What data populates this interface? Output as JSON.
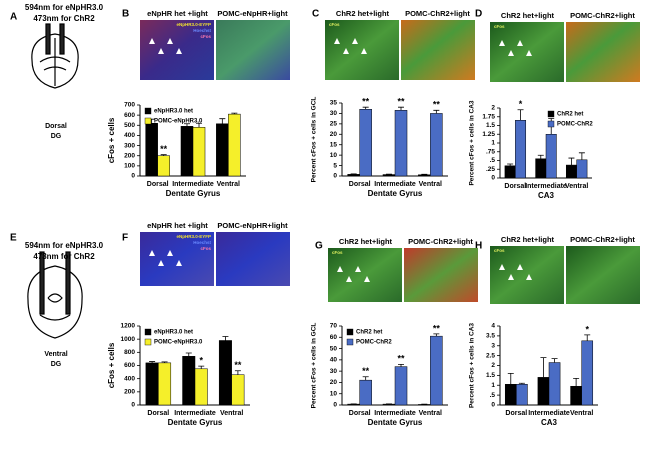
{
  "panel_labels": [
    "A",
    "B",
    "C",
    "D",
    "E",
    "F",
    "G",
    "H"
  ],
  "diagrams": [
    {
      "title_lines": [
        "594nm for eNpHR3.0",
        "473nm for ChR2"
      ],
      "labels": [
        "Dorsal",
        "DG"
      ]
    },
    {
      "title_lines": [
        "594nm for eNpHR3.0",
        "473nm for ChR2"
      ],
      "labels": [
        "Ventral",
        "DG"
      ]
    }
  ],
  "micrographs": [
    {
      "left": "eNpHR het +light",
      "right": "POMC-eNpHR+light",
      "stains": [
        "eNpHR3.0-EYFP",
        "Hoechst",
        "cFos"
      ]
    },
    {
      "left": "ChR2 het+light",
      "right": "POMC-ChR2+light",
      "stains": [
        "cFos"
      ]
    },
    {
      "left": "ChR2 het+light",
      "right": "POMC-ChR2+light",
      "stains": [
        "cFos"
      ]
    },
    {
      "left": "eNpHR het +light",
      "right": "POMC-eNpHR+light",
      "stains": [
        "eNpHR3.0-EYFP",
        "Hoechst",
        "cFos"
      ]
    },
    {
      "left": "ChR2 het+light",
      "right": "POMC-ChR2+light",
      "stains": [
        "cFos"
      ]
    },
    {
      "left": "ChR2 het+light",
      "right": "POMC-ChR2+light",
      "stains": [
        "cFos"
      ]
    }
  ],
  "chart_data": [
    {
      "type": "bar",
      "y_label": "cFos + cells",
      "x_label": "Dentate Gyrus",
      "categories": [
        "Dorsal",
        "Intermediate",
        "Ventral"
      ],
      "series": [
        {
          "name": "eNpHR3.0 het",
          "color": "#000000",
          "values": [
            520,
            490,
            515
          ],
          "errors": [
            40,
            25,
            50
          ],
          "significance": [
            null,
            null,
            null
          ]
        },
        {
          "name": "POMC-eNpHR3.0",
          "color": "#f5ef2a",
          "values": [
            200,
            480,
            610
          ],
          "errors": [
            10,
            40,
            10
          ],
          "significance": [
            "**",
            null,
            null
          ]
        }
      ],
      "ylim": [
        0,
        700
      ],
      "yticks": [
        0,
        100,
        200,
        300,
        400,
        500,
        600,
        700
      ],
      "legend": "upper left"
    },
    {
      "type": "bar",
      "y_label": "Percent cFos + cells in GCL",
      "x_label": "Dentate Gyrus",
      "categories": [
        "Dorsal",
        "Intermediate",
        "Ventral"
      ],
      "series": [
        {
          "color": "#000000",
          "values": [
            0.8,
            0.7,
            0.6
          ],
          "errors": [
            0.2,
            0.2,
            0.2
          ],
          "significance": [
            null,
            null,
            null
          ]
        },
        {
          "color": "#4a6cc4",
          "values": [
            32,
            31.5,
            30
          ],
          "errors": [
            1,
            1.5,
            1.5
          ],
          "significance": [
            "**",
            "**",
            "**"
          ]
        }
      ],
      "ylim": [
        0,
        35
      ],
      "yticks": [
        0,
        5,
        10,
        15,
        20,
        25,
        30,
        35
      ]
    },
    {
      "type": "bar",
      "y_label": "Percent cFos + cells in CA3",
      "x_label": "CA3",
      "categories": [
        "Dorsal",
        "Intermediate",
        "Ventral"
      ],
      "series": [
        {
          "name": "ChR2 het",
          "color": "#000000",
          "values": [
            0.35,
            0.55,
            0.37
          ],
          "errors": [
            0.05,
            0.1,
            0.2
          ],
          "significance": [
            null,
            null,
            null
          ]
        },
        {
          "name": "POMC-ChR2",
          "color": "#4a6cc4",
          "values": [
            1.65,
            1.25,
            0.52
          ],
          "errors": [
            0.3,
            0.45,
            0.2
          ],
          "significance": [
            "*",
            null,
            null
          ]
        }
      ],
      "ylim": [
        0,
        2
      ],
      "yticks": [
        0,
        {
          "value": 0.25,
          "label": ".25"
        },
        {
          "value": 0.5,
          "label": ".5"
        },
        {
          "value": 0.75,
          "label": ".75"
        },
        1,
        1.25,
        1.5,
        1.75,
        2
      ],
      "legend": "upper right"
    },
    {
      "type": "bar",
      "y_label": "cFos + cells",
      "x_label": "Dentate Gyrus",
      "categories": [
        "Dorsal",
        "Intermediate",
        "Ventral"
      ],
      "series": [
        {
          "name": "eNpHR3.0 het",
          "color": "#000000",
          "values": [
            640,
            740,
            980
          ],
          "errors": [
            20,
            50,
            60
          ],
          "significance": [
            null,
            null,
            null
          ]
        },
        {
          "name": "POMC-eNpHR3.0",
          "color": "#f5ef2a",
          "values": [
            640,
            550,
            460
          ],
          "errors": [
            15,
            40,
            60
          ],
          "significance": [
            null,
            "*",
            "**"
          ]
        }
      ],
      "ylim": [
        0,
        1200
      ],
      "yticks": [
        0,
        200,
        400,
        600,
        800,
        1000,
        1200
      ],
      "legend": "upper left"
    },
    {
      "type": "bar",
      "y_label": "Percent cFos + cells in GCL",
      "x_label": "Dentate Gyrus",
      "categories": [
        "Dorsal",
        "Intermediate",
        "Ventral"
      ],
      "series": [
        {
          "name": "ChR2 het",
          "color": "#000000",
          "values": [
            0.8,
            0.8,
            0.5
          ],
          "errors": [
            0.2,
            0.2,
            0.2
          ],
          "significance": [
            null,
            null,
            null
          ]
        },
        {
          "name": "POMC-ChR2",
          "color": "#4a6cc4",
          "values": [
            22,
            34,
            61
          ],
          "errors": [
            3,
            2,
            2
          ],
          "significance": [
            "**",
            "**",
            "**"
          ]
        }
      ],
      "ylim": [
        0,
        70
      ],
      "yticks": [
        0,
        10,
        20,
        30,
        40,
        50,
        60,
        70
      ],
      "legend": "upper left"
    },
    {
      "type": "bar",
      "y_label": "Percent cFos + cells in CA3",
      "x_label": "CA3",
      "categories": [
        "Dorsal",
        "Intermediate",
        "Ventral"
      ],
      "series": [
        {
          "color": "#000000",
          "values": [
            1.05,
            1.4,
            0.95
          ],
          "errors": [
            0.55,
            1.0,
            0.4
          ],
          "significance": [
            null,
            null,
            null
          ]
        },
        {
          "color": "#4a6cc4",
          "values": [
            1.05,
            2.15,
            3.25
          ],
          "errors": [
            0.05,
            0.2,
            0.3
          ],
          "significance": [
            null,
            null,
            "*"
          ]
        }
      ],
      "ylim": [
        0,
        4
      ],
      "yticks": [
        0,
        {
          "value": 0.5,
          "label": ".5"
        },
        1,
        1.5,
        2,
        2.5,
        3,
        3.5,
        4
      ]
    }
  ]
}
